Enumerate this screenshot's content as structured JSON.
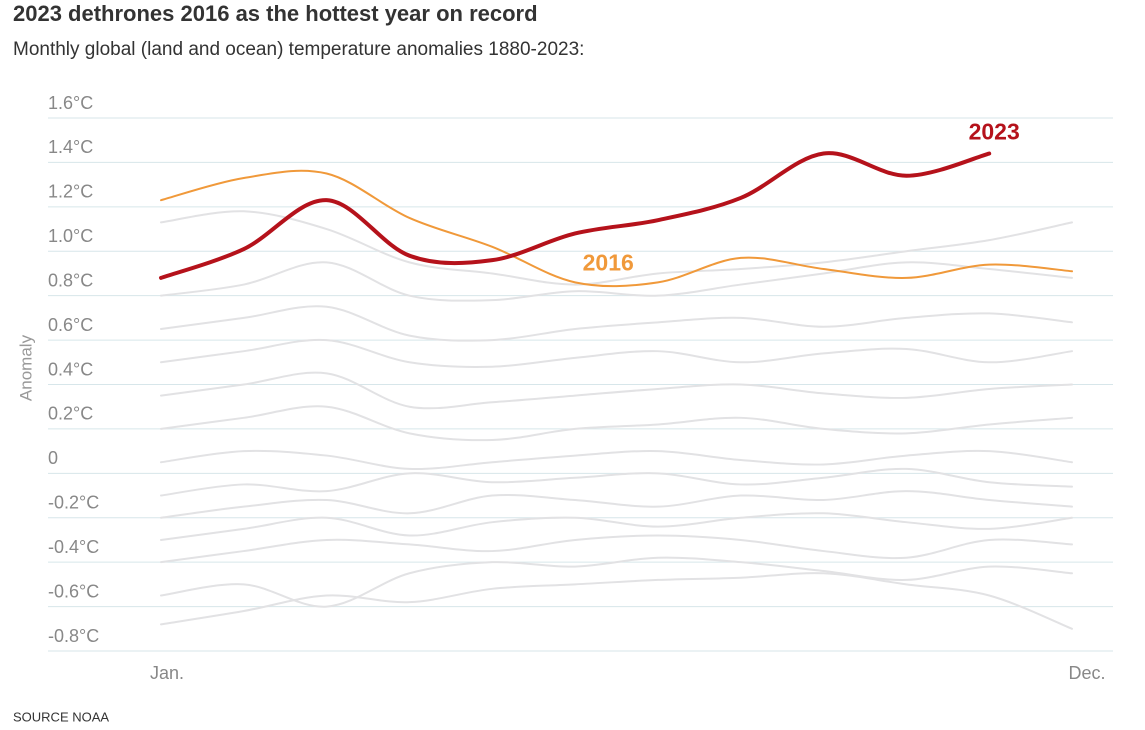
{
  "chart_data": {
    "type": "line",
    "title": "2023 dethrones 2016 as the hottest year on record",
    "subtitle": "Monthly global (land and ocean) temperature anomalies 1880-2023:",
    "y_label": "Anomaly",
    "source": "SOURCE NOAA",
    "categories": [
      "Jan.",
      null,
      null,
      null,
      null,
      null,
      null,
      null,
      null,
      null,
      null,
      "Dec."
    ],
    "ylim": [
      -0.8,
      1.6
    ],
    "yticks": [
      {
        "value": -0.8,
        "label": "-0.8°C"
      },
      {
        "value": -0.6,
        "label": "-0.6°C"
      },
      {
        "value": -0.4,
        "label": "-0.4°C"
      },
      {
        "value": -0.2,
        "label": "-0.2°C"
      },
      0,
      {
        "value": 0.2,
        "label": "0.2°C"
      },
      {
        "value": 0.4,
        "label": "0.4°C"
      },
      {
        "value": 0.6,
        "label": "0.6°C"
      },
      {
        "value": 0.8,
        "label": "0.8°C"
      },
      {
        "value": 1.0,
        "label": "1.0°C"
      },
      {
        "value": 1.2,
        "label": "1.2°C"
      },
      {
        "value": 1.4,
        "label": "1.4°C"
      },
      {
        "value": 1.6,
        "label": "1.6°C"
      }
    ],
    "grid": true,
    "series": [
      {
        "color": "#e2e2e4",
        "values": [
          -0.68,
          -0.62,
          -0.55,
          -0.58,
          -0.52,
          -0.5,
          -0.48,
          -0.47,
          -0.45,
          -0.5,
          -0.55,
          -0.7
        ]
      },
      {
        "color": "#e2e2e4",
        "values": [
          -0.55,
          -0.5,
          -0.6,
          -0.45,
          -0.4,
          -0.42,
          -0.38,
          -0.4,
          -0.44,
          -0.48,
          -0.42,
          -0.45
        ]
      },
      {
        "color": "#e2e2e4",
        "values": [
          -0.4,
          -0.35,
          -0.3,
          -0.32,
          -0.35,
          -0.3,
          -0.28,
          -0.3,
          -0.35,
          -0.38,
          -0.3,
          -0.32
        ]
      },
      {
        "color": "#e2e2e4",
        "values": [
          -0.3,
          -0.25,
          -0.2,
          -0.28,
          -0.22,
          -0.2,
          -0.24,
          -0.2,
          -0.18,
          -0.22,
          -0.25,
          -0.2
        ]
      },
      {
        "color": "#e2e2e4",
        "values": [
          -0.2,
          -0.15,
          -0.12,
          -0.18,
          -0.1,
          -0.12,
          -0.15,
          -0.1,
          -0.12,
          -0.08,
          -0.12,
          -0.15
        ]
      },
      {
        "color": "#e2e2e4",
        "values": [
          -0.1,
          -0.05,
          -0.08,
          0.0,
          -0.04,
          -0.02,
          0.0,
          -0.05,
          -0.02,
          0.02,
          -0.04,
          -0.06
        ]
      },
      {
        "color": "#e2e2e4",
        "values": [
          0.05,
          0.1,
          0.08,
          0.02,
          0.05,
          0.08,
          0.1,
          0.06,
          0.04,
          0.08,
          0.1,
          0.05
        ]
      },
      {
        "color": "#e2e2e4",
        "values": [
          0.2,
          0.25,
          0.3,
          0.18,
          0.15,
          0.2,
          0.22,
          0.25,
          0.2,
          0.18,
          0.22,
          0.25
        ]
      },
      {
        "color": "#e2e2e4",
        "values": [
          0.35,
          0.4,
          0.45,
          0.3,
          0.32,
          0.35,
          0.38,
          0.4,
          0.36,
          0.34,
          0.38,
          0.4
        ]
      },
      {
        "color": "#e2e2e4",
        "values": [
          0.5,
          0.55,
          0.6,
          0.5,
          0.48,
          0.52,
          0.55,
          0.5,
          0.54,
          0.56,
          0.5,
          0.55
        ]
      },
      {
        "color": "#e2e2e4",
        "values": [
          0.65,
          0.7,
          0.75,
          0.62,
          0.6,
          0.65,
          0.68,
          0.7,
          0.66,
          0.7,
          0.72,
          0.68
        ]
      },
      {
        "color": "#e2e2e4",
        "values": [
          0.8,
          0.85,
          0.95,
          0.8,
          0.78,
          0.82,
          0.8,
          0.85,
          0.9,
          0.95,
          0.92,
          0.88
        ]
      },
      {
        "color": "#e2e2e4",
        "values": [
          1.13,
          1.18,
          1.1,
          0.95,
          0.9,
          0.85,
          0.9,
          0.92,
          0.95,
          1.0,
          1.05,
          1.13
        ]
      },
      {
        "name": "2016",
        "color": "#f0993a",
        "values": [
          1.23,
          1.33,
          1.35,
          1.15,
          1.02,
          0.86,
          0.86,
          0.97,
          0.92,
          0.88,
          0.94,
          0.91
        ]
      },
      {
        "name": "2023",
        "color": "#b5121b",
        "values": [
          0.88,
          1.01,
          1.23,
          0.98,
          0.96,
          1.08,
          1.14,
          1.24,
          1.44,
          1.34,
          1.44,
          null
        ]
      }
    ]
  }
}
